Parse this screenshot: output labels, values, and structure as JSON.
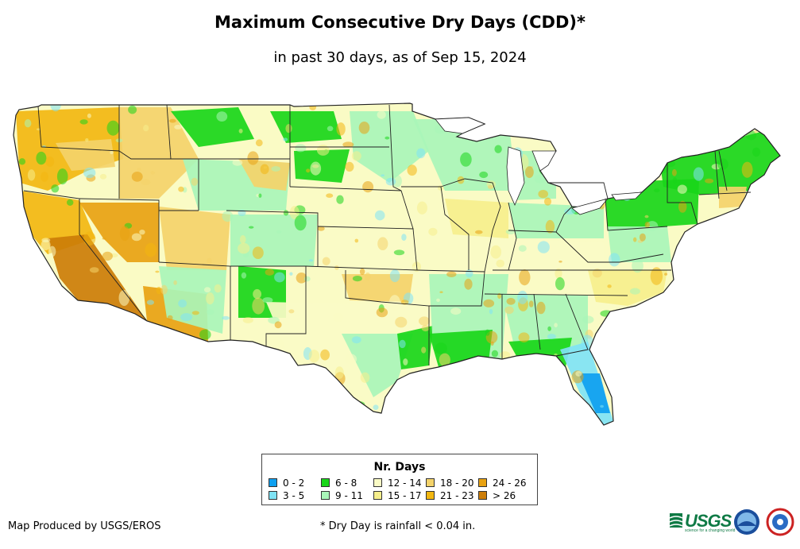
{
  "title": "Maximum Consecutive Dry Days (CDD)*",
  "subtitle": "in past 30 days, as of Sep 15, 2024",
  "legend": {
    "title": "Nr. Days",
    "items": [
      {
        "label": "0 - 2",
        "color": "#0ea0f0"
      },
      {
        "label": "3 - 5",
        "color": "#7fe3f5"
      },
      {
        "label": "6 - 8",
        "color": "#19d619"
      },
      {
        "label": "9 - 11",
        "color": "#a9f5b8"
      },
      {
        "label": "12 - 14",
        "color": "#fafbc5"
      },
      {
        "label": "15 - 17",
        "color": "#f6ef8c"
      },
      {
        "label": "18 - 20",
        "color": "#f4d36a"
      },
      {
        "label": "21 - 23",
        "color": "#f2b711"
      },
      {
        "label": "24 - 26",
        "color": "#e8a212"
      },
      {
        "label": "> 26",
        "color": "#cc7d08"
      }
    ]
  },
  "credit": "Map Produced by USGS/EROS",
  "footnote": "* Dry Day is rainfall < 0.04 in.",
  "logos": {
    "usgs": "USGS",
    "usgs_tagline": "science for a changing world",
    "noaa": "noaa-logo",
    "nws": "nws-logo"
  }
}
